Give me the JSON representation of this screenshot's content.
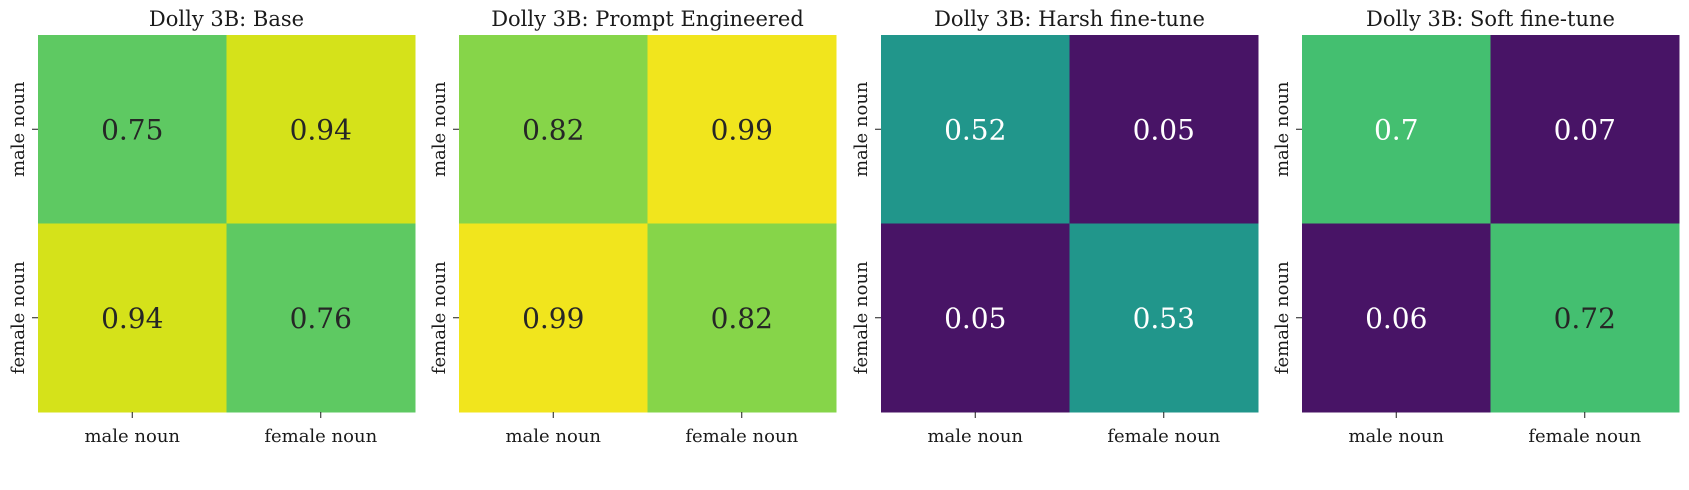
{
  "chart_data": [
    {
      "type": "heatmap",
      "title": "Dolly 3B: Base",
      "x_categories": [
        "male noun",
        "female noun"
      ],
      "y_categories": [
        "male noun",
        "female noun"
      ],
      "values": [
        [
          0.75,
          0.94
        ],
        [
          0.94,
          0.76
        ]
      ],
      "colors": [
        [
          "#5ec962",
          "#d5e21a"
        ],
        [
          "#d5e21a",
          "#5ec962"
        ]
      ],
      "text_colors": [
        [
          "#262626",
          "#262626"
        ],
        [
          "#262626",
          "#262626"
        ]
      ],
      "colorbar": false,
      "grid": false
    },
    {
      "type": "heatmap",
      "title": "Dolly 3B: Prompt Engineered",
      "x_categories": [
        "male noun",
        "female noun"
      ],
      "y_categories": [
        "male noun",
        "female noun"
      ],
      "values": [
        [
          0.82,
          0.99
        ],
        [
          0.99,
          0.82
        ]
      ],
      "colors": [
        [
          "#86d549",
          "#f1e51d"
        ],
        [
          "#f1e51d",
          "#86d549"
        ]
      ],
      "text_colors": [
        [
          "#262626",
          "#262626"
        ],
        [
          "#262626",
          "#262626"
        ]
      ],
      "colorbar": false,
      "grid": false
    },
    {
      "type": "heatmap",
      "title": "Dolly 3B: Harsh fine-tune",
      "x_categories": [
        "male noun",
        "female noun"
      ],
      "y_categories": [
        "male noun",
        "female noun"
      ],
      "values": [
        [
          0.52,
          0.05
        ],
        [
          0.05,
          0.53
        ]
      ],
      "colors": [
        [
          "#21968b",
          "#481466"
        ],
        [
          "#481466",
          "#21968b"
        ]
      ],
      "text_colors": [
        [
          "#ffffff",
          "#ffffff"
        ],
        [
          "#ffffff",
          "#ffffff"
        ]
      ],
      "colorbar": false,
      "grid": false
    },
    {
      "type": "heatmap",
      "title": "Dolly 3B: Soft fine-tune",
      "x_categories": [
        "male noun",
        "female noun"
      ],
      "y_categories": [
        "male noun",
        "female noun"
      ],
      "values": [
        [
          0.7,
          0.07
        ],
        [
          0.06,
          0.72
        ]
      ],
      "colors": [
        [
          "#44bf70",
          "#481466"
        ],
        [
          "#481466",
          "#44bf70"
        ]
      ],
      "text_colors": [
        [
          "#ffffff",
          "#ffffff"
        ],
        [
          "#ffffff",
          "#262626"
        ]
      ],
      "colorbar": false,
      "grid": false
    }
  ]
}
